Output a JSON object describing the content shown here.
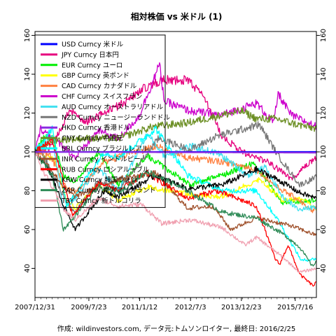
{
  "chart_data": {
    "type": "line",
    "title": "相対株価 vs 米ドル (1)",
    "source": "作成: wildinvestors.com, データ元:トムソンロイター, 最終日: 2016/2/25",
    "xlim": [
      "2007-12-31",
      "2016-02-25"
    ],
    "ylim": [
      25,
      162
    ],
    "x_ticks": [
      {
        "label": "2007/12/31",
        "date": "2007-12-31"
      },
      {
        "label": "2009/7/23",
        "date": "2009-07-23"
      },
      {
        "label": "2011/1/12",
        "date": "2011-01-12"
      },
      {
        "label": "2012/7/3",
        "date": "2012-07-03"
      },
      {
        "label": "2013/12/23",
        "date": "2013-12-23"
      },
      {
        "label": "2015/7/16",
        "date": "2015-07-16"
      }
    ],
    "y_ticks": [
      40,
      60,
      80,
      100,
      120,
      140,
      160
    ],
    "grid": false,
    "legend_position": "top-left",
    "series": [
      {
        "name": "USD Curncy 米ドル",
        "color": "#0000ff",
        "x": [
          "2007-12-31",
          "2016-02-25"
        ],
        "values": [
          100,
          100
        ]
      },
      {
        "name": "JPY Curncy 日本円",
        "color": "#e6007e",
        "x": [
          "2007-12-31",
          "2008-06-01",
          "2008-10-01",
          "2009-01-01",
          "2009-06-01",
          "2010-01-01",
          "2010-09-01",
          "2011-03-01",
          "2011-09-01",
          "2012-06-01",
          "2012-12-01",
          "2013-06-01",
          "2014-01-01",
          "2014-10-01",
          "2015-06-01",
          "2016-02-25"
        ],
        "values": [
          100,
          102,
          112,
          122,
          115,
          120,
          126,
          133,
          137,
          137,
          128,
          108,
          100,
          95,
          86,
          97
        ]
      },
      {
        "name": "EUR Curncy ユーロ",
        "color": "#00ee00",
        "x": [
          "2007-12-31",
          "2008-04-01",
          "2008-07-01",
          "2008-11-01",
          "2009-03-01",
          "2009-11-01",
          "2010-06-01",
          "2011-04-01",
          "2011-12-01",
          "2012-07-01",
          "2013-06-01",
          "2014-05-01",
          "2015-03-01",
          "2016-02-25"
        ],
        "values": [
          100,
          107,
          108,
          87,
          85,
          100,
          83,
          98,
          90,
          83,
          88,
          94,
          74,
          75
        ]
      },
      {
        "name": "GBP Curncy 英ポンド",
        "color": "#ffff00",
        "x": [
          "2007-12-31",
          "2008-08-01",
          "2008-12-01",
          "2009-03-01",
          "2009-11-01",
          "2010-06-01",
          "2011-04-01",
          "2012-07-01",
          "2013-06-01",
          "2014-07-01",
          "2015-03-01",
          "2015-11-01",
          "2016-02-25"
        ],
        "values": [
          100,
          96,
          74,
          71,
          83,
          75,
          82,
          78,
          77,
          86,
          75,
          76,
          70
        ]
      },
      {
        "name": "CAD Curncy カナダドル",
        "color": "#ff8040",
        "x": [
          "2007-12-31",
          "2008-06-01",
          "2008-12-01",
          "2009-03-01",
          "2010-01-01",
          "2011-07-01",
          "2012-06-01",
          "2013-06-01",
          "2014-06-01",
          "2015-01-01",
          "2015-09-01",
          "2016-01-15",
          "2016-02-25"
        ],
        "values": [
          100,
          99,
          81,
          79,
          95,
          103,
          97,
          95,
          91,
          82,
          75,
          69,
          72
        ]
      },
      {
        "name": "CHF Curncy スイスフラン",
        "color": "#cc00cc",
        "x": [
          "2007-12-31",
          "2008-03-01",
          "2008-10-01",
          "2009-03-01",
          "2009-11-01",
          "2010-06-01",
          "2011-01-01",
          "2011-08-10",
          "2011-10-01",
          "2012-07-01",
          "2013-06-01",
          "2014-06-01",
          "2014-12-01",
          "2015-01-16",
          "2015-06-01",
          "2016-02-25"
        ],
        "values": [
          100,
          112,
          104,
          97,
          111,
          107,
          118,
          145,
          126,
          121,
          119,
          125,
          115,
          130,
          119,
          113
        ]
      },
      {
        "name": "AUD Curncy オーストラリアドル",
        "color": "#40e0f0",
        "x": [
          "2007-12-31",
          "2008-07-01",
          "2008-10-28",
          "2009-03-01",
          "2009-11-01",
          "2010-06-01",
          "2011-04-01",
          "2011-10-01",
          "2012-07-01",
          "2013-05-01",
          "2014-03-01",
          "2014-09-01",
          "2015-03-01",
          "2015-09-01",
          "2016-02-25"
        ],
        "values": [
          100,
          109,
          70,
          76,
          92,
          80,
          109,
          98,
          103,
          99,
          88,
          92,
          77,
          70,
          72
        ]
      },
      {
        "name": "NZD Curncy ニュージーランドドル",
        "color": "#777777",
        "x": [
          "2007-12-31",
          "2008-03-01",
          "2008-12-01",
          "2009-03-01",
          "2009-11-01",
          "2010-06-01",
          "2011-08-01",
          "2012-07-01",
          "2013-04-01",
          "2014-07-01",
          "2015-02-01",
          "2015-09-01",
          "2016-02-25"
        ],
        "values": [
          100,
          101,
          74,
          69,
          85,
          80,
          107,
          101,
          108,
          114,
          97,
          83,
          87
        ]
      },
      {
        "name": "HKD Curncy 香港ドル",
        "color": "#8a2be2",
        "x": [
          "2007-12-31",
          "2016-02-25"
        ],
        "values": [
          100,
          99.6
        ]
      },
      {
        "name": "CNY Curncy 中国元",
        "color": "#6b8e23",
        "x": [
          "2007-12-31",
          "2008-07-01",
          "2009-06-01",
          "2010-06-01",
          "2011-06-01",
          "2012-06-01",
          "2013-06-01",
          "2014-01-01",
          "2014-06-01",
          "2015-01-01",
          "2015-08-10",
          "2016-02-25"
        ],
        "values": [
          100,
          106,
          107,
          107,
          113,
          115,
          119,
          121,
          117,
          117,
          114,
          112
        ]
      },
      {
        "name": "BRL Curncy ブラジルレアル",
        "color": "#00ffff",
        "x": [
          "2007-12-31",
          "2008-07-01",
          "2008-12-01",
          "2009-06-01",
          "2010-01-01",
          "2010-06-01",
          "2011-07-01",
          "2012-06-01",
          "2013-06-01",
          "2014-06-01",
          "2015-01-01",
          "2015-09-20",
          "2016-02-25"
        ],
        "values": [
          100,
          112,
          72,
          85,
          100,
          97,
          112,
          88,
          80,
          80,
          66,
          44,
          45
        ]
      },
      {
        "name": "INR Curncy インドルピー",
        "color": "#a0522d",
        "x": [
          "2007-12-31",
          "2008-06-01",
          "2008-12-01",
          "2009-03-01",
          "2010-06-01",
          "2011-07-01",
          "2012-06-01",
          "2013-03-01",
          "2013-08-30",
          "2014-06-01",
          "2015-06-01",
          "2016-02-25"
        ],
        "values": [
          100,
          92,
          80,
          77,
          86,
          89,
          71,
          72,
          60,
          66,
          62,
          57
        ]
      },
      {
        "name": "RUB Curncy ロシアルーブル",
        "color": "#ff0000",
        "x": [
          "2007-12-31",
          "2008-07-01",
          "2009-02-01",
          "2009-11-01",
          "2010-06-01",
          "2011-04-01",
          "2012-06-01",
          "2013-04-01",
          "2014-01-01",
          "2014-06-01",
          "2014-12-16",
          "2015-02-01",
          "2015-05-01",
          "2015-09-01",
          "2016-01-21",
          "2016-02-25"
        ],
        "values": [
          100,
          106,
          67,
          84,
          80,
          89,
          76,
          80,
          75,
          72,
          45,
          42,
          52,
          37,
          31,
          33
        ]
      },
      {
        "name": "KRW Curncy 韓国ウォン",
        "color": "#000000",
        "x": [
          "2007-12-31",
          "2008-06-01",
          "2008-11-01",
          "2009-03-01",
          "2010-01-01",
          "2010-06-01",
          "2011-07-01",
          "2012-06-01",
          "2013-06-01",
          "2014-06-01",
          "2015-01-01",
          "2015-09-01",
          "2016-02-25"
        ],
        "values": [
          100,
          90,
          72,
          60,
          80,
          77,
          88,
          81,
          83,
          91,
          86,
          79,
          76
        ]
      },
      {
        "name": "ZAR Curncy 南アフリカランド",
        "color": "#2e8b57",
        "x": [
          "2007-12-31",
          "2008-07-01",
          "2008-10-27",
          "2009-03-01",
          "2009-11-01",
          "2010-06-01",
          "2011-04-01",
          "2012-06-01",
          "2013-06-01",
          "2014-06-01",
          "2015-03-01",
          "2015-09-01",
          "2016-01-15",
          "2016-02-25"
        ],
        "values": [
          100,
          88,
          60,
          67,
          82,
          79,
          90,
          80,
          69,
          66,
          58,
          51,
          41,
          44
        ]
      },
      {
        "name": "TRY Curncy 新トルコリラ",
        "color": "#f0a0b0",
        "x": [
          "2007-12-31",
          "2008-04-01",
          "2008-11-01",
          "2009-03-01",
          "2009-11-01",
          "2010-06-01",
          "2011-02-01",
          "2011-09-01",
          "2012-07-01",
          "2013-06-01",
          "2014-02-01",
          "2014-06-01",
          "2015-03-01",
          "2015-09-01",
          "2016-02-25"
        ],
        "values": [
          100,
          90,
          70,
          65,
          76,
          72,
          73,
          63,
          65,
          61,
          52,
          56,
          46,
          38,
          40
        ]
      }
    ]
  }
}
